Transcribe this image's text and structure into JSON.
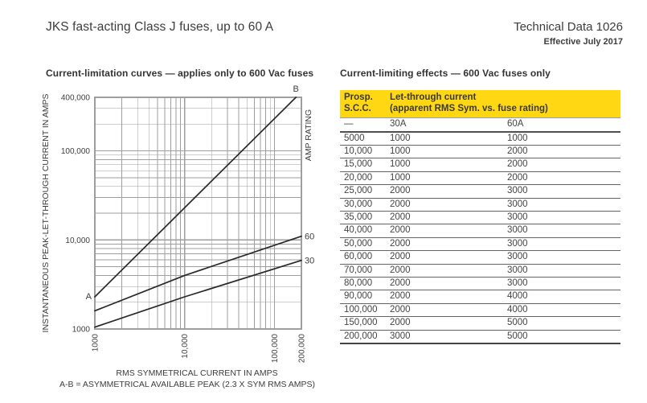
{
  "header": {
    "title": "JKS fast-acting Class J fuses, up to 60 A",
    "doc_ref": "Technical Data 1026",
    "effective": "Effective July 2017"
  },
  "chart_section": {
    "heading": "Current-limitation curves  —  applies only to 600 Vac fuses"
  },
  "chart_data": {
    "type": "line",
    "x_axis": {
      "label": "RMS SYMMETRICAL CURRENT IN AMPS",
      "scale": "log",
      "min": 1000,
      "max": 200000,
      "ticks": [
        {
          "value": 1000,
          "label": "1000"
        },
        {
          "value": 10000,
          "label": "10,000"
        },
        {
          "value": 100000,
          "label": "100,000"
        },
        {
          "value": 200000,
          "label": "200,000"
        }
      ]
    },
    "y_axis": {
      "label": "INSTANTANEOUS PEAK-LET-THROUGH CURRENT IN AMPS",
      "scale": "log",
      "min": 1000,
      "max": 400000,
      "ticks": [
        {
          "value": 400000,
          "label": "400,000"
        },
        {
          "value": 100000,
          "label": "100,000"
        },
        {
          "value": 10000,
          "label": "10,000"
        },
        {
          "value": 1000,
          "label": "1000"
        }
      ]
    },
    "right_axis_label": "AMP RATING",
    "footnote": "A-B = ASYMMETRICAL AVAILABLE PEAK (2.3 X SYM RMS AMPS)",
    "grid": "log-log minor gridlines on",
    "series": [
      {
        "name": "asym-available-peak",
        "start_label": "A",
        "end_label": "B",
        "points": [
          [
            1000,
            2300
          ],
          [
            173913,
            400000
          ]
        ]
      },
      {
        "name": "60A-fuse",
        "label": "60",
        "points": [
          [
            1000,
            1600
          ],
          [
            10000,
            4000
          ],
          [
            200000,
            11000
          ]
        ]
      },
      {
        "name": "30A-fuse",
        "label": "30",
        "points": [
          [
            1000,
            1050
          ],
          [
            10000,
            2300
          ],
          [
            200000,
            5900
          ]
        ]
      }
    ]
  },
  "table_section": {
    "heading": "Current-limiting effects  —  600 Vac fuses only",
    "columns": {
      "c1_line1": "Prosp.",
      "c1_line2": "S.C.C.",
      "c2_line1": "Let-through current",
      "c2_line2": "(apparent RMS Sym. vs. fuse rating)"
    },
    "subheader": [
      "—",
      "30A",
      "60A"
    ],
    "rows": [
      [
        "5000",
        "1000",
        "1000"
      ],
      [
        "10,000",
        "1000",
        "2000"
      ],
      [
        "15,000",
        "1000",
        "2000"
      ],
      [
        "20,000",
        "1000",
        "2000"
      ],
      [
        "25,000",
        "2000",
        "3000"
      ],
      [
        "30,000",
        "2000",
        "3000"
      ],
      [
        "35,000",
        "2000",
        "3000"
      ],
      [
        "40,000",
        "2000",
        "3000"
      ],
      [
        "50,000",
        "2000",
        "3000"
      ],
      [
        "60,000",
        "2000",
        "3000"
      ],
      [
        "70,000",
        "2000",
        "3000"
      ],
      [
        "80,000",
        "2000",
        "3000"
      ],
      [
        "90,000",
        "2000",
        "4000"
      ],
      [
        "100,000",
        "2000",
        "4000"
      ],
      [
        "150,000",
        "2000",
        "5000"
      ],
      [
        "200,000",
        "3000",
        "5000"
      ]
    ]
  },
  "colors": {
    "accent_yellow": "#ffd712",
    "text": "#3d3d3d",
    "grid": "#9e9e9e",
    "curve": "#282828"
  }
}
